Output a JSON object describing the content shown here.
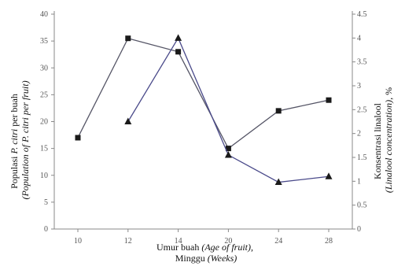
{
  "chart_data": {
    "type": "line",
    "categories": [
      "10",
      "12",
      "14",
      "20",
      "24",
      "28"
    ],
    "x": [
      10,
      12,
      14,
      20,
      24,
      28
    ],
    "ylim": [
      0,
      40
    ],
    "yticks": [
      0,
      5,
      10,
      15,
      20,
      25,
      30,
      35,
      40
    ],
    "y2lim": [
      0,
      4.5
    ],
    "y2ticks": [
      0,
      0.5,
      1,
      1.5,
      2,
      2.5,
      3,
      3.5,
      4,
      4.5
    ],
    "ylabel": {
      "line1_plain": "Populasi ",
      "line1_italic": "P. citri",
      "line1_tail": " per buah",
      "line2": "(Population of P. citri per fruit)"
    },
    "y2label": {
      "line1": "Konsentrasi linalool",
      "line2_italic": "(Linalool concentration)",
      "line2_tail": ", %"
    },
    "xlabel": {
      "line1_plain": "Umur buah ",
      "line1_italic": "(Age of fruit),",
      "line2_plain": "Minggu ",
      "line2_italic": "(Weeks)"
    },
    "grid": false,
    "series": [
      {
        "axis": "left",
        "marker": "square",
        "color": "#555566",
        "values": [
          17,
          35.5,
          33,
          15,
          22,
          24
        ]
      },
      {
        "axis": "right",
        "marker": "triangle",
        "color": "#4a4a8a",
        "values": [
          null,
          2.25,
          4.0,
          1.55,
          0.98,
          1.1
        ]
      }
    ]
  }
}
